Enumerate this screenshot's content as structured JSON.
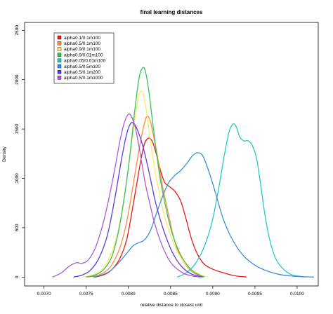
{
  "chart_data": {
    "type": "line",
    "title": "final learning distances",
    "xlabel": "relative distance to closest unit",
    "ylabel": "Density",
    "xlim": [
      0.00677,
      0.01025
    ],
    "ylim": [
      -90,
      2580
    ],
    "x_ticks": [
      0.007,
      0.0075,
      0.008,
      0.0085,
      0.009,
      0.0095,
      0.01
    ],
    "x_tick_labels": [
      "0.0070",
      "0.0075",
      "0.0080",
      "0.0085",
      "0.0090",
      "0.0095",
      "0.0100"
    ],
    "y_ticks": [
      0,
      500,
      1000,
      1500,
      2000,
      2500
    ],
    "y_tick_labels": [
      "0",
      "500",
      "1000",
      "1500",
      "2000",
      "2500"
    ],
    "grid": false,
    "legend_position": "top-left",
    "series": [
      {
        "name": "alpha0.1/0.1m100",
        "color": "#e41a1c",
        "x": [
          0.0076,
          0.00768,
          0.00775,
          0.00782,
          0.0079,
          0.00798,
          0.00805,
          0.00812,
          0.00818,
          0.00823,
          0.00828,
          0.00833,
          0.00838,
          0.00843,
          0.00848,
          0.00855,
          0.00862,
          0.00868,
          0.00875,
          0.00882,
          0.0089,
          0.009,
          0.00912,
          0.00925,
          0.0094
        ],
        "values": [
          0,
          15,
          40,
          90,
          190,
          380,
          700,
          1050,
          1320,
          1405,
          1380,
          1250,
          1080,
          960,
          920,
          870,
          770,
          600,
          380,
          230,
          130,
          80,
          45,
          15,
          0
        ]
      },
      {
        "name": "alpha0.5/0.1m100",
        "color": "#ff8c39",
        "x": [
          0.0075,
          0.0076,
          0.0077,
          0.0078,
          0.0079,
          0.00798,
          0.00805,
          0.00812,
          0.00818,
          0.00822,
          0.00826,
          0.0083,
          0.00835,
          0.0084,
          0.00846,
          0.00852,
          0.00858,
          0.00865,
          0.00872,
          0.0088,
          0.0089
        ],
        "values": [
          0,
          10,
          40,
          120,
          300,
          560,
          900,
          1260,
          1520,
          1630,
          1580,
          1420,
          1200,
          940,
          700,
          460,
          280,
          160,
          80,
          30,
          0
        ]
      },
      {
        "name": "alpha0.9/0.1m100",
        "color": "#ffe866",
        "x": [
          0.00745,
          0.00755,
          0.00765,
          0.00775,
          0.00785,
          0.00793,
          0.008,
          0.00806,
          0.00812,
          0.00816,
          0.0082,
          0.00825,
          0.0083,
          0.00836,
          0.00842,
          0.0085,
          0.00858,
          0.00866,
          0.00875,
          0.00885,
          0.00895
        ],
        "values": [
          0,
          15,
          50,
          150,
          370,
          700,
          1100,
          1500,
          1830,
          1880,
          1760,
          1450,
          1150,
          880,
          640,
          420,
          260,
          150,
          70,
          25,
          0
        ]
      },
      {
        "name": "alpha0.9/0.01m100",
        "color": "#38c15c",
        "x": [
          0.0075,
          0.0076,
          0.0077,
          0.0078,
          0.00788,
          0.00795,
          0.00802,
          0.00808,
          0.00813,
          0.00817,
          0.0082,
          0.00824,
          0.00828,
          0.00833,
          0.00838,
          0.00845,
          0.00852,
          0.0086,
          0.00868,
          0.00878,
          0.0089
        ],
        "values": [
          0,
          20,
          70,
          200,
          450,
          800,
          1250,
          1720,
          2030,
          2120,
          2090,
          1900,
          1620,
          1280,
          980,
          680,
          440,
          260,
          140,
          50,
          0
        ]
      },
      {
        "name": "alpha0.05/0.01m100",
        "color": "#2ac8c8",
        "x": [
          0.00858,
          0.00868,
          0.00878,
          0.00888,
          0.00898,
          0.00906,
          0.00913,
          0.00919,
          0.00924,
          0.00928,
          0.00932,
          0.00937,
          0.00942,
          0.00947,
          0.00952,
          0.00957,
          0.00962,
          0.00968,
          0.00975,
          0.00985,
          0.00995,
          0.0101
        ],
        "values": [
          0,
          40,
          120,
          270,
          520,
          850,
          1200,
          1460,
          1550,
          1520,
          1420,
          1380,
          1380,
          1330,
          1200,
          920,
          620,
          360,
          180,
          70,
          20,
          0
        ]
      },
      {
        "name": "alpha0.5/0.5m100",
        "color": "#3c8edb",
        "x": [
          0.00758,
          0.00768,
          0.00778,
          0.00788,
          0.00798,
          0.00806,
          0.00813,
          0.00818,
          0.00823,
          0.00828,
          0.00833,
          0.00838,
          0.00843,
          0.00848,
          0.00855,
          0.00862,
          0.0087,
          0.00876,
          0.00882,
          0.00888,
          0.00895,
          0.00903,
          0.00912,
          0.00922,
          0.00935,
          0.0095,
          0.00965,
          0.0098,
          0.00995,
          0.0101,
          0.0102
        ],
        "values": [
          0,
          20,
          60,
          140,
          240,
          320,
          350,
          370,
          420,
          510,
          640,
          760,
          870,
          960,
          1030,
          1080,
          1160,
          1230,
          1260,
          1230,
          1080,
          860,
          600,
          400,
          230,
          120,
          60,
          25,
          10,
          3,
          0
        ]
      },
      {
        "name": "alpha0.5/0.1m200",
        "color": "#5a3ddb",
        "x": [
          0.00735,
          0.00745,
          0.00755,
          0.00765,
          0.00775,
          0.00784,
          0.00792,
          0.00798,
          0.00803,
          0.00808,
          0.00813,
          0.00818,
          0.00823,
          0.00828,
          0.00833,
          0.0084,
          0.00848,
          0.00856,
          0.00865,
          0.00875,
          0.00888
        ],
        "values": [
          0,
          20,
          70,
          190,
          420,
          800,
          1200,
          1450,
          1560,
          1540,
          1440,
          1300,
          1120,
          920,
          730,
          520,
          330,
          190,
          90,
          30,
          0
        ]
      },
      {
        "name": "alpha0.5/0.1m1000",
        "color": "#b157d6",
        "x": [
          0.0071,
          0.0072,
          0.0073,
          0.00738,
          0.00745,
          0.00752,
          0.0076,
          0.00768,
          0.00776,
          0.00784,
          0.0079,
          0.00795,
          0.008,
          0.00804,
          0.00808,
          0.00812,
          0.00816,
          0.0082,
          0.00825,
          0.0083,
          0.00836,
          0.00843,
          0.0085,
          0.00858,
          0.00866,
          0.00875,
          0.00885
        ],
        "values": [
          0,
          40,
          110,
          145,
          140,
          170,
          280,
          480,
          760,
          1100,
          1380,
          1560,
          1650,
          1620,
          1520,
          1350,
          1150,
          950,
          760,
          580,
          410,
          260,
          150,
          80,
          35,
          12,
          0
        ]
      }
    ]
  }
}
